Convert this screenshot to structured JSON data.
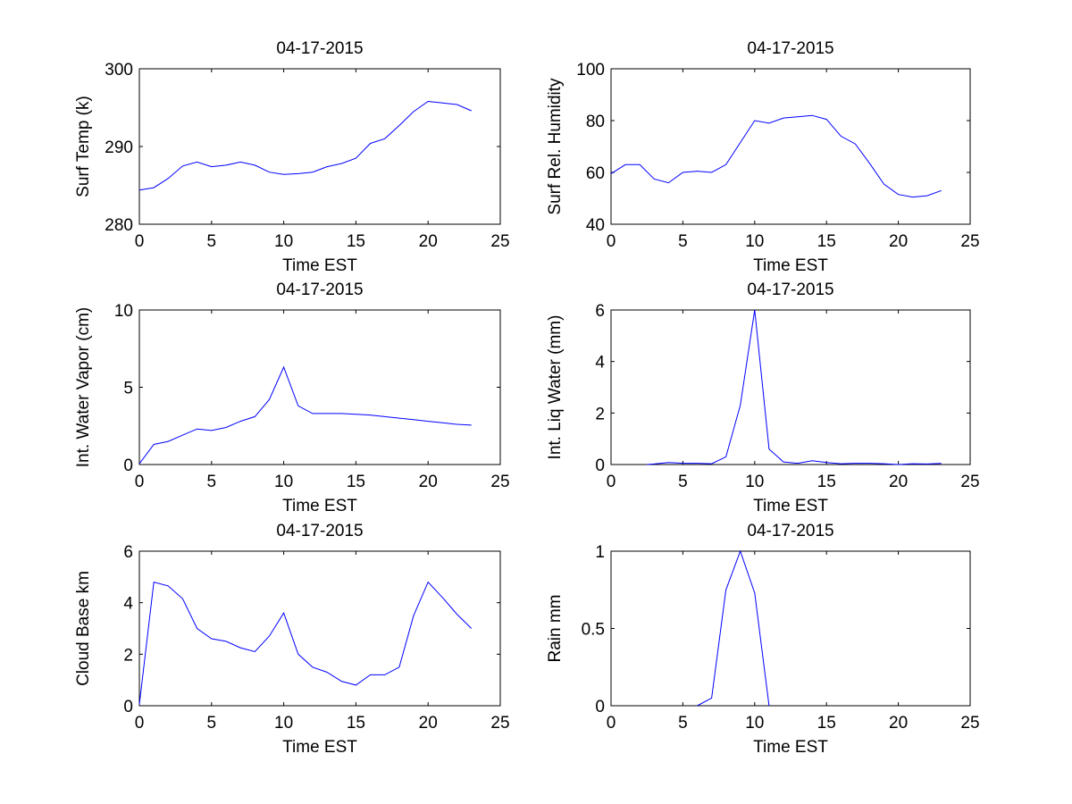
{
  "chart_data": [
    {
      "type": "line",
      "title": "04-17-2015",
      "xlabel": "Time EST",
      "ylabel": "Surf Temp (k)",
      "xlim": [
        0,
        25
      ],
      "ylim": [
        280,
        300
      ],
      "xticks": [
        0,
        5,
        10,
        15,
        20,
        25
      ],
      "yticks": [
        280,
        290,
        300
      ],
      "grid": false,
      "color": "#0000ff",
      "x": [
        0,
        1,
        2,
        3,
        4,
        5,
        6,
        7,
        8,
        9,
        10,
        11,
        12,
        13,
        14,
        15,
        16,
        17,
        18,
        19,
        20,
        21,
        22,
        23
      ],
      "y": [
        284.4,
        284.7,
        285.9,
        287.5,
        288.0,
        287.4,
        287.6,
        288.0,
        287.6,
        286.7,
        286.4,
        286.5,
        286.7,
        287.4,
        287.8,
        288.5,
        290.4,
        291.0,
        292.7,
        294.5,
        295.8,
        295.6,
        295.4,
        294.6
      ]
    },
    {
      "type": "line",
      "title": "04-17-2015",
      "xlabel": "Time EST",
      "ylabel": "Surf Rel. Humidity",
      "xlim": [
        0,
        25
      ],
      "ylim": [
        40,
        100
      ],
      "xticks": [
        0,
        5,
        10,
        15,
        20,
        25
      ],
      "yticks": [
        40,
        60,
        80,
        100
      ],
      "grid": false,
      "color": "#0000ff",
      "x": [
        0,
        1,
        2,
        3,
        4,
        5,
        6,
        7,
        8,
        9,
        10,
        11,
        12,
        13,
        14,
        15,
        16,
        17,
        18,
        19,
        20,
        21,
        22,
        23
      ],
      "y": [
        59.5,
        63,
        63,
        57.5,
        56,
        60,
        60.5,
        60,
        63,
        71.5,
        80,
        79,
        81,
        81.5,
        82,
        80.5,
        74,
        71,
        63.5,
        55.5,
        51.5,
        50.5,
        51,
        53
      ]
    },
    {
      "type": "line",
      "title": "04-17-2015",
      "xlabel": "Time EST",
      "ylabel": "Int. Water Vapor (cm)",
      "xlim": [
        0,
        25
      ],
      "ylim": [
        0,
        10
      ],
      "xticks": [
        0,
        5,
        10,
        15,
        20,
        25
      ],
      "yticks": [
        0,
        5,
        10
      ],
      "grid": false,
      "color": "#0000ff",
      "x": [
        0,
        1,
        2,
        3,
        4,
        5,
        6,
        7,
        8,
        9,
        10,
        11,
        12,
        13,
        14,
        15,
        16,
        17,
        18,
        19,
        20,
        21,
        22,
        23
      ],
      "y": [
        0.05,
        1.3,
        1.5,
        1.9,
        2.3,
        2.2,
        2.4,
        2.8,
        3.1,
        4.2,
        6.3,
        3.8,
        3.3,
        3.3,
        3.3,
        3.25,
        3.2,
        3.1,
        3.0,
        2.9,
        2.8,
        2.7,
        2.6,
        2.55
      ]
    },
    {
      "type": "line",
      "title": "04-17-2015",
      "xlabel": "Time EST",
      "ylabel": "Int. Liq Water (mm)",
      "xlim": [
        0,
        25
      ],
      "ylim": [
        0,
        6
      ],
      "xticks": [
        0,
        5,
        10,
        15,
        20,
        25
      ],
      "yticks": [
        0,
        2,
        4,
        6
      ],
      "grid": false,
      "color": "#0000ff",
      "x": [
        2.5,
        3,
        4,
        5,
        6,
        7,
        8,
        9,
        10,
        11,
        12,
        13,
        14,
        15,
        16,
        17,
        18,
        19,
        20,
        21,
        22,
        23
      ],
      "y": [
        0.0,
        0.02,
        0.08,
        0.05,
        0.05,
        0.03,
        0.3,
        2.3,
        6.0,
        0.6,
        0.1,
        0.05,
        0.15,
        0.08,
        0.03,
        0.05,
        0.05,
        0.03,
        0.0,
        0.03,
        0.02,
        0.04
      ]
    },
    {
      "type": "line",
      "title": "04-17-2015",
      "xlabel": "Time EST",
      "ylabel": "Cloud Base km",
      "xlim": [
        0,
        25
      ],
      "ylim": [
        0,
        6
      ],
      "xticks": [
        0,
        5,
        10,
        15,
        20,
        25
      ],
      "yticks": [
        0,
        2,
        4,
        6
      ],
      "grid": false,
      "color": "#0000ff",
      "x": [
        0,
        1,
        2,
        3,
        4,
        5,
        6,
        7,
        8,
        9,
        10,
        11,
        12,
        13,
        14,
        15,
        16,
        17,
        18,
        19,
        20,
        21,
        22,
        23
      ],
      "y": [
        0.05,
        4.8,
        4.65,
        4.15,
        3.0,
        2.6,
        2.5,
        2.25,
        2.1,
        2.7,
        3.6,
        2.0,
        1.5,
        1.3,
        0.95,
        0.8,
        1.2,
        1.2,
        1.5,
        3.5,
        4.8,
        4.2,
        3.55,
        3.0
      ]
    },
    {
      "type": "line",
      "title": "04-17-2015",
      "xlabel": "Time EST",
      "ylabel": "Rain mm",
      "xlim": [
        0,
        25
      ],
      "ylim": [
        0,
        1
      ],
      "xticks": [
        0,
        5,
        10,
        15,
        20,
        25
      ],
      "yticks": [
        0,
        0.5,
        1
      ],
      "grid": false,
      "color": "#0000ff",
      "x": [
        6,
        7,
        8,
        9,
        10,
        11
      ],
      "y": [
        0.0,
        0.05,
        0.75,
        1.0,
        0.73,
        0.0
      ]
    }
  ]
}
